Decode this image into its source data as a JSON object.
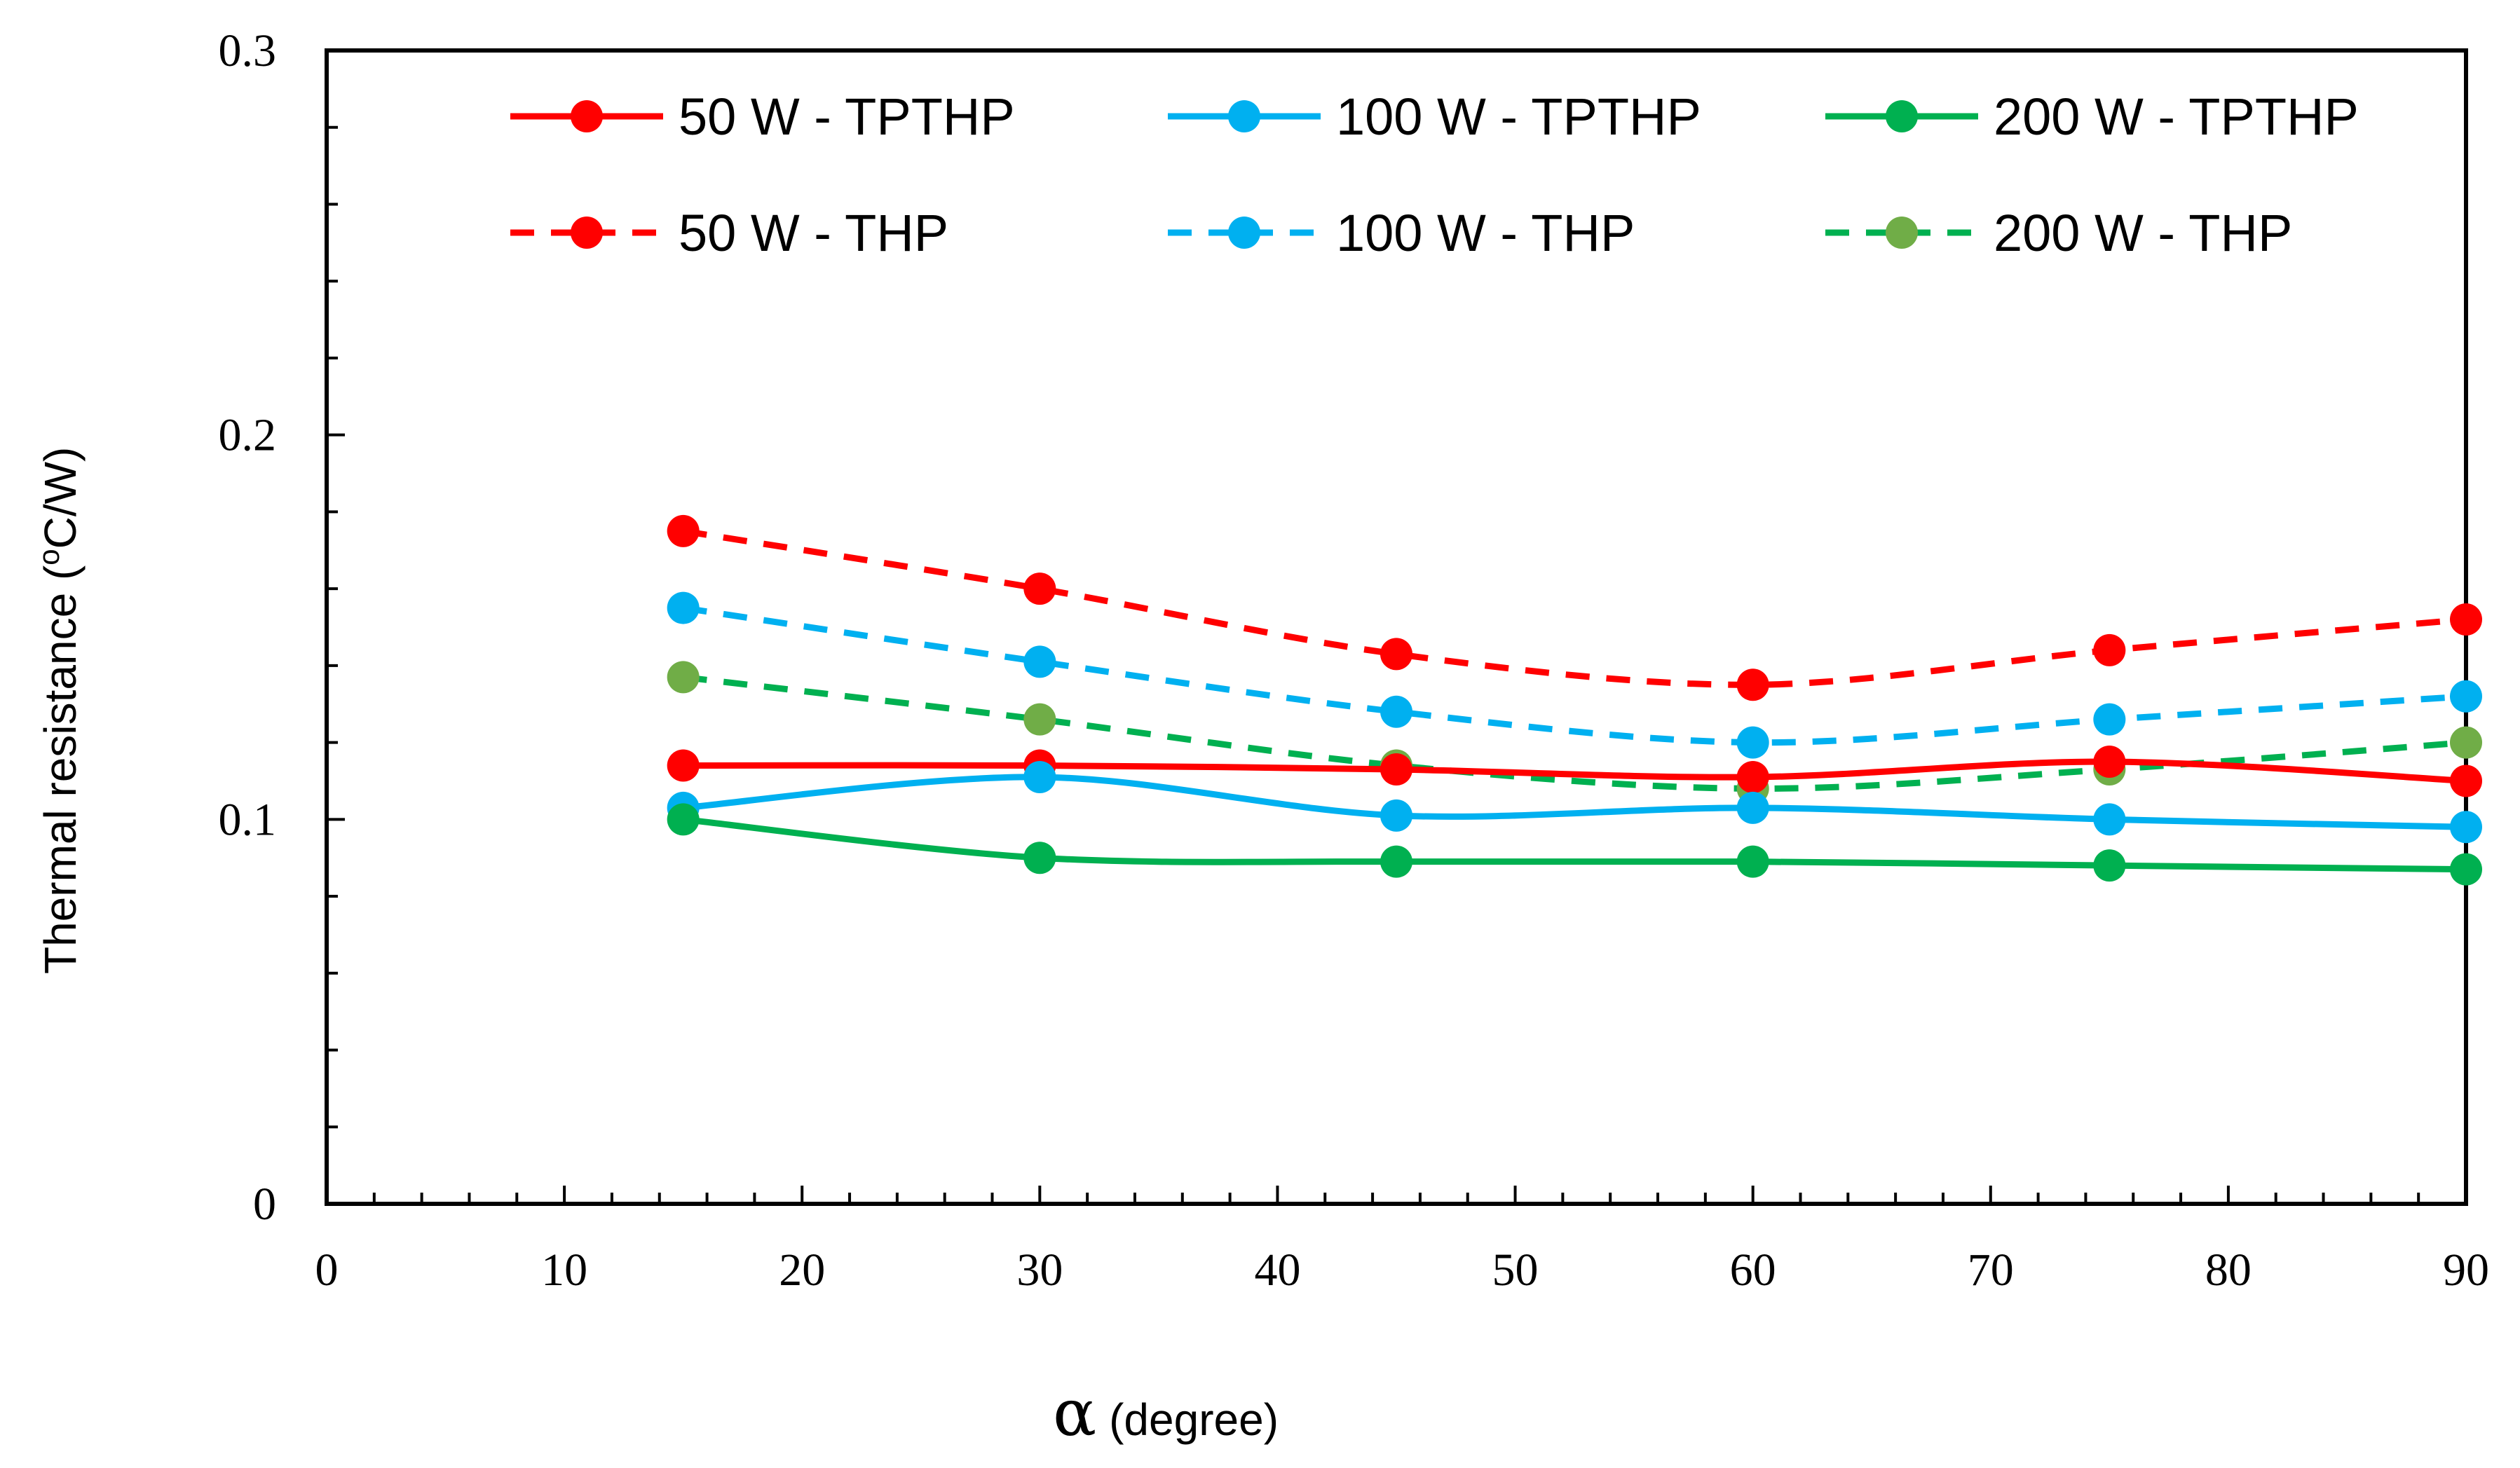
{
  "chart_data": {
    "type": "line",
    "xlabel_symbol": "α",
    "xlabel": "(degree)",
    "ylabel": "Thermal resistance (",
    "ylabel_sup": "o",
    "ylabel_tail": "C/W)",
    "xlim": [
      0,
      90
    ],
    "ylim": [
      0,
      0.3
    ],
    "xticks": [
      "0",
      "10",
      "20",
      "30",
      "40",
      "50",
      "60",
      "70",
      "80",
      "90"
    ],
    "yticks": [
      "0",
      "0.1",
      "0.2",
      "0.3"
    ],
    "x": [
      15,
      30,
      45,
      60,
      75,
      90
    ],
    "legend_position": "top",
    "series": [
      {
        "name": "50 W - TPTHP",
        "style": "solid",
        "color": "#ff0000",
        "marker_color": "#ff0000",
        "values": [
          0.114,
          0.114,
          0.113,
          0.111,
          0.115,
          0.11
        ]
      },
      {
        "name": "100 W - TPTHP",
        "style": "solid",
        "color": "#00b0f0",
        "marker_color": "#00b0f0",
        "values": [
          0.103,
          0.111,
          0.101,
          0.103,
          0.1,
          0.098
        ]
      },
      {
        "name": "200 W - TPTHP",
        "style": "solid",
        "color": "#00b050",
        "marker_color": "#00b050",
        "values": [
          0.1,
          0.09,
          0.089,
          0.089,
          0.088,
          0.087
        ]
      },
      {
        "name": "50 W - THP",
        "style": "dashed",
        "color": "#ff0000",
        "marker_color": "#ff0000",
        "values": [
          0.175,
          0.16,
          0.143,
          0.135,
          0.144,
          0.152
        ]
      },
      {
        "name": "100 W - THP",
        "style": "dashed",
        "color": "#00b0f0",
        "marker_color": "#00b0f0",
        "values": [
          0.155,
          0.141,
          0.128,
          0.12,
          0.126,
          0.132
        ]
      },
      {
        "name": "200 W - THP",
        "style": "dashed",
        "color": "#00b050",
        "marker_color": "#70ad47",
        "values": [
          0.137,
          0.126,
          0.114,
          0.108,
          0.113,
          0.12
        ]
      }
    ]
  }
}
